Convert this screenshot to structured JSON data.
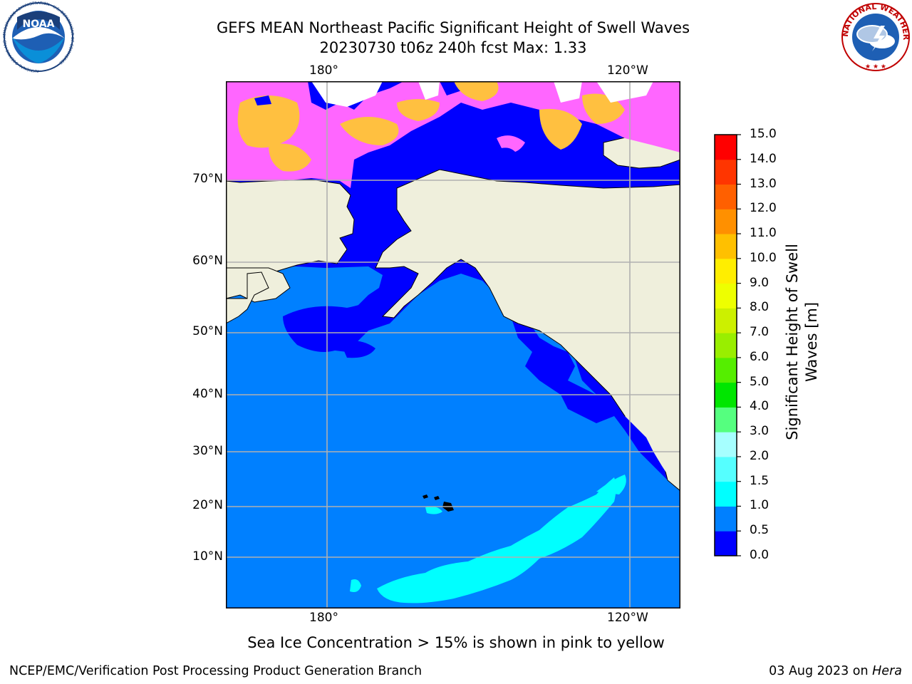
{
  "title": {
    "line1": "GEFS MEAN Northeast Pacific Significant Height of Swell Waves",
    "line2": "20230730 t06z 240h fcst   Max: 1.33"
  },
  "logos": {
    "left": "NOAA",
    "left_ring": "NATIONAL OCEANIC AND ATMOSPHERIC ADMINISTRATION · U.S. DEPARTMENT OF COMMERCE",
    "right_ring": "NATIONAL WEATHER SERVICE"
  },
  "map": {
    "lon_ticks_top": [
      "180°",
      "120°W"
    ],
    "lon_ticks_bottom": [
      "180°",
      "120°W"
    ],
    "lat_ticks": [
      "70°N",
      "60°N",
      "50°N",
      "40°N",
      "30°N",
      "20°N",
      "10°N"
    ],
    "colors": {
      "swell_0_0_5": "#0000ff",
      "swell_0_5_1_0": "#0080ff",
      "swell_1_0_1_5": "#00ffff",
      "land": "#efefdc",
      "ice_pink": "#ff66ff",
      "ice_orange": "#ffc040",
      "grid": "#b0b0b0"
    }
  },
  "colorbar": {
    "label_line1": "Significant Height of Swell",
    "label_line2": "Waves [m]",
    "ticks": [
      "0.0",
      "0.5",
      "1.0",
      "1.5",
      "2.0",
      "3.0",
      "4.0",
      "5.0",
      "6.0",
      "7.0",
      "8.0",
      "9.0",
      "10.0",
      "11.0",
      "12.0",
      "13.0",
      "14.0",
      "15.0"
    ],
    "colors": [
      "#0000ff",
      "#0080ff",
      "#00ffff",
      "#55ffff",
      "#a6ffff",
      "#55ff7f",
      "#00e600",
      "#55ee00",
      "#99ee00",
      "#ccf000",
      "#eeff00",
      "#ffee00",
      "#ffc000",
      "#ff9000",
      "#ff6000",
      "#ff3500",
      "#ff0000"
    ]
  },
  "caption": "Sea Ice Concentration > 15% is shown in pink to yellow",
  "footer": {
    "left": "NCEP/EMC/Verification Post Processing Product Generation Branch",
    "right_date": "03 Aug 2023 on ",
    "right_host": "Hera"
  }
}
